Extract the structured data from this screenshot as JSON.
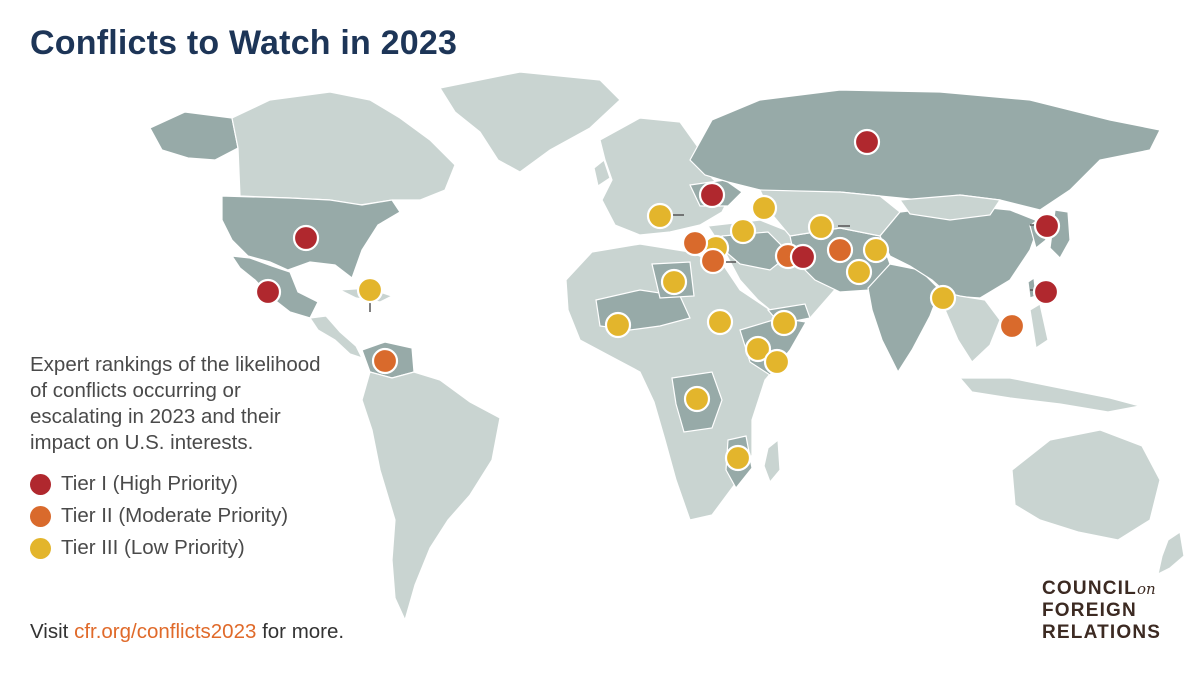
{
  "title": "Conflicts to Watch in 2023",
  "description": "Expert rankings of the likelihood of conflicts occurring or escalating in 2023 and their impact on U.S. interests.",
  "legend": [
    {
      "label": "Tier I (High Priority)",
      "color": "#b0282e"
    },
    {
      "label": "Tier II (Moderate Priority)",
      "color": "#d96a2c"
    },
    {
      "label": "Tier III (Low Priority)",
      "color": "#e3b52c"
    }
  ],
  "visit": {
    "prefix": "Visit ",
    "link": "cfr.org/conflicts2023",
    "suffix": " for more."
  },
  "logo": {
    "line1": "COUNCIL",
    "on": "on",
    "line2": "FOREIGN",
    "line3": "RELATIONS"
  },
  "colors": {
    "land_highlight": "#97aaa8",
    "land": "#c9d4d1",
    "title": "#1d3557",
    "link": "#e06a2a"
  },
  "markers_count": {
    "tier1": 7,
    "tier2": 5,
    "tier3": 16
  }
}
